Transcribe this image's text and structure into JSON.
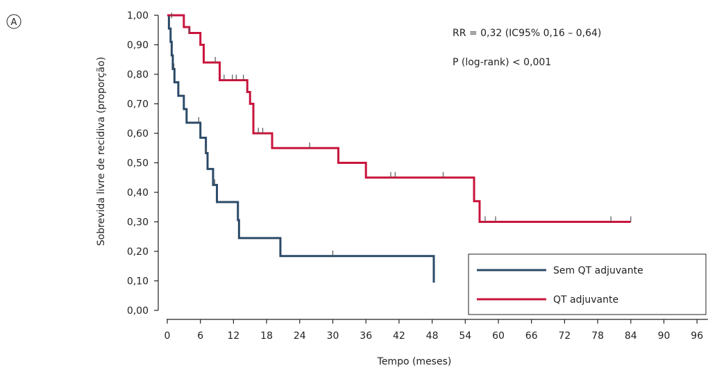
{
  "panel_label": "A",
  "chart_data": {
    "type": "line",
    "title": "",
    "xlabel": "Tempo (meses)",
    "ylabel": "Sobrevida livre de recidiva (proporção)",
    "xlim": [
      0,
      96
    ],
    "ylim": [
      0,
      1
    ],
    "xticks": [
      0,
      6,
      12,
      18,
      24,
      30,
      36,
      42,
      48,
      54,
      60,
      66,
      72,
      78,
      84,
      90,
      96
    ],
    "yticks": [
      0,
      0.1,
      0.2,
      0.3,
      0.4,
      0.5,
      0.6,
      0.7,
      0.8,
      0.9,
      1.0
    ],
    "x_tick_labels": [
      "0",
      "6",
      "12",
      "18",
      "24",
      "30",
      "36",
      "42",
      "48",
      "54",
      "60",
      "66",
      "72",
      "78",
      "84",
      "90",
      "96"
    ],
    "y_tick_labels": [
      "0,00",
      "0,10",
      "0,20",
      "0,30",
      "0,40",
      "0,50",
      "0,60",
      "0,70",
      "0,80",
      "0,90",
      "1,00"
    ],
    "grid": false,
    "legend_position": "bottom-right",
    "annotations": [
      "RR = 0,32 (IC95% 0,16 – 0,64)",
      "P (log-rank) < 0,001"
    ],
    "series": [
      {
        "name": "Sem QT adjuvante",
        "color": "#2b4a67",
        "step": [
          [
            0,
            1.0
          ],
          [
            0.3,
            0.955
          ],
          [
            0.6,
            0.91
          ],
          [
            0.8,
            0.864
          ],
          [
            1.0,
            0.818
          ],
          [
            1.3,
            0.773
          ],
          [
            2.0,
            0.727
          ],
          [
            3.0,
            0.682
          ],
          [
            3.5,
            0.636
          ],
          [
            6.0,
            0.585
          ],
          [
            7.0,
            0.533
          ],
          [
            7.3,
            0.479
          ],
          [
            8.3,
            0.425
          ],
          [
            9.0,
            0.367
          ],
          [
            12.8,
            0.306
          ],
          [
            13.0,
            0.245
          ],
          [
            20.5,
            0.184
          ],
          [
            48.3,
            0.094
          ]
        ],
        "end_x": 48.3,
        "censored": [
          [
            1.2,
            0.818
          ],
          [
            5.7,
            0.636
          ],
          [
            7.0,
            0.533
          ],
          [
            8.6,
            0.425
          ],
          [
            30.0,
            0.184
          ]
        ]
      },
      {
        "name": "QT adjuvante",
        "color": "#c8143c",
        "step": [
          [
            0,
            1.0
          ],
          [
            3.0,
            0.96
          ],
          [
            4.0,
            0.94
          ],
          [
            6.0,
            0.9
          ],
          [
            6.6,
            0.84
          ],
          [
            9.5,
            0.78
          ],
          [
            14.5,
            0.74
          ],
          [
            15.0,
            0.7
          ],
          [
            15.6,
            0.6
          ],
          [
            19.0,
            0.55
          ],
          [
            31.0,
            0.5
          ],
          [
            36.0,
            0.45
          ],
          [
            55.6,
            0.37
          ],
          [
            56.6,
            0.3
          ]
        ],
        "end_x": 84.0,
        "censored": [
          [
            0.8,
            0.99
          ],
          [
            4.0,
            0.94
          ],
          [
            8.7,
            0.84
          ],
          [
            10.3,
            0.78
          ],
          [
            11.8,
            0.78
          ],
          [
            12.5,
            0.78
          ],
          [
            13.8,
            0.78
          ],
          [
            16.5,
            0.6
          ],
          [
            17.3,
            0.6
          ],
          [
            25.8,
            0.55
          ],
          [
            40.5,
            0.45
          ],
          [
            41.3,
            0.45
          ],
          [
            50.0,
            0.45
          ],
          [
            57.6,
            0.3
          ],
          [
            59.5,
            0.3
          ],
          [
            80.4,
            0.3
          ],
          [
            84.0,
            0.3
          ]
        ]
      }
    ]
  }
}
